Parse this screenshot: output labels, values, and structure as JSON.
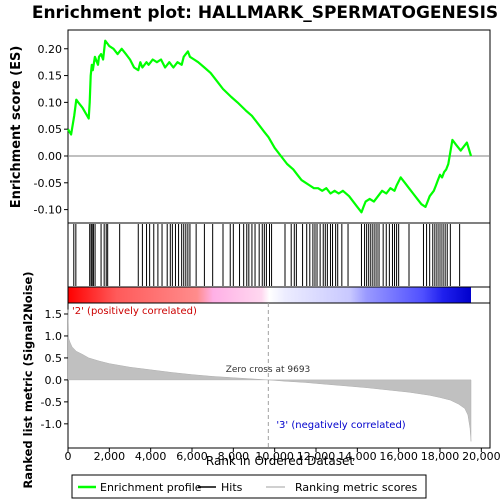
{
  "chart_data": [
    {
      "type": "line",
      "title": "Enrichment plot: HALLMARK_SPERMATOGENESIS",
      "ylabel": "Enrichment score (ES)",
      "xlim": [
        0,
        19500
      ],
      "ylim": [
        -0.125,
        0.235
      ],
      "yticks": [
        "-0.10",
        "-0.05",
        "0.00",
        "0.05",
        "0.10",
        "0.15",
        "0.20"
      ],
      "ytick_values": [
        -0.1,
        -0.05,
        0.0,
        0.05,
        0.1,
        0.15,
        0.2
      ],
      "grid": false,
      "color": "#00ff00",
      "series": [
        {
          "name": "Enrichment profile",
          "x": [
            0,
            150,
            300,
            400,
            500,
            700,
            1000,
            1050,
            1100,
            1150,
            1200,
            1300,
            1450,
            1500,
            1600,
            1700,
            1800,
            1900,
            2000,
            2200,
            2400,
            2600,
            2800,
            3000,
            3200,
            3400,
            3500,
            3600,
            3800,
            3900,
            4000,
            4100,
            4300,
            4500,
            4700,
            4900,
            5100,
            5300,
            5500,
            5600,
            5700,
            5800,
            5900,
            6100,
            6300,
            6600,
            6900,
            7200,
            7500,
            7900,
            8200,
            8600,
            8900,
            9200,
            9500,
            9700,
            10000,
            10300,
            10600,
            10900,
            11100,
            11300,
            11500,
            11700,
            11900,
            12100,
            12300,
            12500,
            12700,
            12900,
            13100,
            13300,
            13600,
            13800,
            14000,
            14200,
            14300,
            14400,
            14600,
            14800,
            15000,
            15200,
            15400,
            15600,
            15800,
            15900,
            16100,
            16300,
            16500,
            16700,
            16900,
            17100,
            17300,
            17400,
            17500,
            17700,
            17800,
            17900,
            18000,
            18100,
            18200,
            18300,
            18400,
            18600,
            18800,
            19000,
            19300,
            19500
          ],
          "y": [
            0.05,
            0.04,
            0.075,
            0.105,
            0.1,
            0.09,
            0.07,
            0.1,
            0.15,
            0.17,
            0.16,
            0.185,
            0.17,
            0.185,
            0.19,
            0.18,
            0.215,
            0.21,
            0.205,
            0.2,
            0.19,
            0.2,
            0.19,
            0.18,
            0.165,
            0.16,
            0.175,
            0.165,
            0.175,
            0.17,
            0.175,
            0.18,
            0.175,
            0.18,
            0.165,
            0.175,
            0.165,
            0.175,
            0.17,
            0.185,
            0.19,
            0.195,
            0.185,
            0.18,
            0.175,
            0.165,
            0.155,
            0.14,
            0.125,
            0.11,
            0.1,
            0.085,
            0.075,
            0.06,
            0.045,
            0.035,
            0.015,
            0.0,
            -0.015,
            -0.025,
            -0.035,
            -0.045,
            -0.05,
            -0.055,
            -0.06,
            -0.06,
            -0.065,
            -0.06,
            -0.07,
            -0.065,
            -0.07,
            -0.065,
            -0.075,
            -0.085,
            -0.095,
            -0.105,
            -0.095,
            -0.085,
            -0.08,
            -0.085,
            -0.075,
            -0.065,
            -0.07,
            -0.06,
            -0.065,
            -0.055,
            -0.04,
            -0.05,
            -0.06,
            -0.07,
            -0.08,
            -0.09,
            -0.095,
            -0.085,
            -0.075,
            -0.065,
            -0.055,
            -0.045,
            -0.035,
            -0.04,
            -0.03,
            -0.025,
            -0.015,
            0.03,
            0.02,
            0.01,
            0.025,
            0.0
          ]
        }
      ]
    },
    {
      "type": "hits",
      "name": "Hits",
      "x": [
        280,
        380,
        1050,
        1120,
        1170,
        1230,
        1310,
        1600,
        1750,
        1850,
        1920,
        2500,
        3400,
        3600,
        3800,
        3950,
        4150,
        4350,
        4550,
        4800,
        4950,
        5050,
        5200,
        5350,
        5500,
        5600,
        5700,
        5800,
        5900,
        6200,
        6600,
        7000,
        7500,
        7850,
        8000,
        8300,
        8500,
        8650,
        8750,
        8900,
        9050,
        9250,
        9400,
        9500,
        9600,
        9750,
        9850,
        10500,
        10800,
        10950,
        11050,
        11350,
        11550,
        11700,
        11850,
        11950,
        12050,
        12200,
        12350,
        12450,
        12550,
        12700,
        12800,
        12950,
        13050,
        13250,
        13550,
        14200,
        14350,
        14450,
        14550,
        14650,
        14750,
        14850,
        14950,
        15050,
        15250,
        15400,
        15550,
        15700,
        15800,
        15900,
        16000,
        16500,
        17200,
        17350,
        17500,
        17650,
        17750,
        17850,
        17950,
        18050,
        18150,
        18250,
        18350,
        18500,
        18950
      ]
    },
    {
      "type": "heatmap",
      "name": "ranked-list-colorbar",
      "xlim": [
        0,
        19500
      ],
      "zero_cross": 9693,
      "colors": [
        "#ff0000",
        "#ffffff",
        "#0000ff"
      ]
    },
    {
      "type": "area",
      "xlabel": "Rank in Ordered Dataset",
      "ylabel": "Ranked list metric (Signal2Noise)",
      "xlim": [
        0,
        19500
      ],
      "ylim": [
        -1.55,
        1.75
      ],
      "xticks": [
        "0",
        "2,000",
        "4,000",
        "6,000",
        "8,000",
        "10,000",
        "12,000",
        "14,000",
        "16,000",
        "18,000",
        "20,000"
      ],
      "xtick_values": [
        0,
        2000,
        4000,
        6000,
        8000,
        10000,
        12000,
        14000,
        16000,
        18000,
        20000
      ],
      "yticks": [
        "-1.0",
        "-0.5",
        "0.0",
        "0.5",
        "1.0",
        "1.5"
      ],
      "ytick_values": [
        -1.0,
        -0.5,
        0.0,
        0.5,
        1.0,
        1.5
      ],
      "color": "#c0c0c0",
      "series": [
        {
          "name": "Ranking metric scores",
          "x": [
            0,
            30,
            100,
            200,
            400,
            700,
            1000,
            1500,
            2000,
            3000,
            4000,
            5000,
            6000,
            7000,
            8000,
            9000,
            9693,
            10500,
            11500,
            12500,
            13500,
            14500,
            15500,
            16500,
            17500,
            18000,
            18500,
            18900,
            19200,
            19350,
            19450,
            19500
          ],
          "y": [
            1.6,
            0.95,
            0.85,
            0.75,
            0.65,
            0.58,
            0.5,
            0.43,
            0.37,
            0.29,
            0.23,
            0.17,
            0.12,
            0.08,
            0.05,
            0.02,
            0.0,
            -0.03,
            -0.06,
            -0.1,
            -0.14,
            -0.18,
            -0.23,
            -0.28,
            -0.35,
            -0.4,
            -0.46,
            -0.55,
            -0.65,
            -0.8,
            -1.1,
            -1.4
          ]
        }
      ],
      "annotations": {
        "zero_cross": "Zero cross at 9693",
        "positive": "'2' (positively correlated)",
        "negative": "'3' (negatively correlated)"
      }
    }
  ],
  "legend": {
    "items": [
      {
        "label": "Enrichment profile",
        "color": "#00ff00"
      },
      {
        "label": "Hits",
        "color": "#000000"
      },
      {
        "label": "Ranking metric scores",
        "color": "#c0c0c0"
      }
    ]
  }
}
